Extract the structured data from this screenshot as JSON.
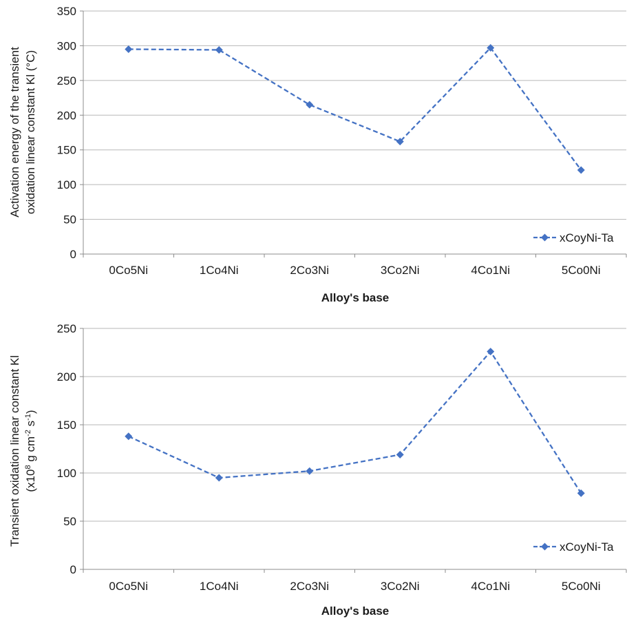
{
  "chart_data": [
    {
      "type": "line",
      "categories": [
        "0Co5Ni",
        "1Co4Ni",
        "2Co3Ni",
        "3Co2Ni",
        "4Co1Ni",
        "5Co0Ni"
      ],
      "series": [
        {
          "name": "xCoyNi-Ta",
          "values": [
            295,
            294,
            215,
            162,
            297,
            121
          ]
        }
      ],
      "xlabel": "Alloy's base",
      "ylabel_lines": [
        "Activation energy of the transient",
        "oxidation linear constant Kl (°C)"
      ],
      "ylim": [
        0,
        350
      ],
      "yticks": [
        0,
        50,
        100,
        150,
        200,
        250,
        300,
        350
      ],
      "grid": true,
      "legend_position": "bottom-right",
      "line_style": "dashed",
      "marker": "diamond",
      "color": "#4472c4"
    },
    {
      "type": "line",
      "categories": [
        "0Co5Ni",
        "1Co4Ni",
        "2Co3Ni",
        "3Co2Ni",
        "4Co1Ni",
        "5Co0Ni"
      ],
      "series": [
        {
          "name": "xCoyNi-Ta",
          "values": [
            138,
            95,
            102,
            119,
            226,
            79
          ]
        }
      ],
      "xlabel": "Alloy's base",
      "ylabel_line1": "Transient oxidation linear constant Kl",
      "ylabel_line2": {
        "a": "(x10",
        "b": "8",
        "c": " g cm",
        "d": "-2",
        "e": " s",
        "f": "-1",
        "g": ")"
      },
      "ylim": [
        0,
        250
      ],
      "yticks": [
        0,
        50,
        100,
        150,
        200,
        250
      ],
      "grid": true,
      "legend_position": "bottom-right",
      "line_style": "dashed",
      "marker": "diamond",
      "color": "#4472c4"
    }
  ]
}
